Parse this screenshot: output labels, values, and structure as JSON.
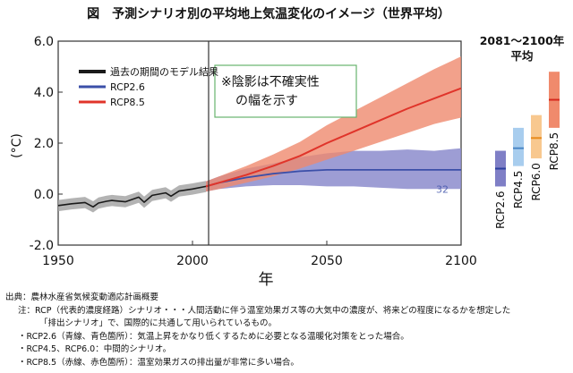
{
  "chart_data": {
    "type": "line",
    "title": "図　予測シナリオ別の平均地上気温変化のイメージ（世界平均）",
    "ylabel": "(°C)",
    "xlabel": "年",
    "xlim": [
      1950,
      2100
    ],
    "ylim": [
      -2.0,
      6.0
    ],
    "xticks": [
      "1950",
      "2000",
      "2050",
      "2100"
    ],
    "yticks": [
      "-2.0",
      "0.0",
      "2.0",
      "4.0",
      "6.0"
    ],
    "annotation": "※陰影は不確実性の幅を示す",
    "watermark_number": "32",
    "colors": {
      "historical_line": "#1a1a1a",
      "historical_band": "#a6a6a6",
      "rcp26_line": "#3b4fa8",
      "rcp26_band": "#8c8ccc",
      "rcp85_line": "#e0342a",
      "rcp85_band": "#ef8a6e"
    },
    "series": [
      {
        "name": "過去の期間のモデル結果",
        "x": [
          1950,
          1955,
          1960,
          1963,
          1965,
          1968,
          1970,
          1975,
          1980,
          1982,
          1985,
          1990,
          1992,
          1995,
          2000,
          2005
        ],
        "values": [
          -0.45,
          -0.38,
          -0.33,
          -0.5,
          -0.35,
          -0.28,
          -0.25,
          -0.3,
          -0.12,
          -0.32,
          -0.05,
          0.05,
          -0.08,
          0.12,
          0.2,
          0.3
        ],
        "band_half_width": 0.22
      },
      {
        "name": "RCP2.6",
        "x": [
          2005,
          2010,
          2020,
          2030,
          2040,
          2050,
          2060,
          2070,
          2080,
          2090,
          2100
        ],
        "values": [
          0.3,
          0.45,
          0.65,
          0.8,
          0.9,
          0.95,
          0.95,
          0.95,
          0.95,
          0.95,
          0.95
        ],
        "lower": [
          0.1,
          0.2,
          0.3,
          0.35,
          0.35,
          0.3,
          0.3,
          0.25,
          0.2,
          0.2,
          0.2
        ],
        "upper": [
          0.5,
          0.7,
          1.0,
          1.2,
          1.45,
          1.6,
          1.7,
          1.7,
          1.75,
          1.7,
          1.8
        ]
      },
      {
        "name": "RCP8.5",
        "x": [
          2005,
          2010,
          2020,
          2030,
          2040,
          2050,
          2060,
          2070,
          2080,
          2090,
          2100
        ],
        "values": [
          0.3,
          0.45,
          0.75,
          1.1,
          1.5,
          2.0,
          2.45,
          2.9,
          3.35,
          3.75,
          4.15
        ],
        "lower": [
          0.1,
          0.2,
          0.45,
          0.7,
          1.0,
          1.35,
          1.7,
          2.05,
          2.4,
          2.75,
          3.0
        ],
        "upper": [
          0.5,
          0.7,
          1.1,
          1.55,
          2.05,
          2.7,
          3.25,
          3.8,
          4.35,
          4.9,
          5.4
        ]
      }
    ],
    "side_panel": {
      "title_line1": "2081～2100年",
      "title_line2": "平均",
      "bars": [
        {
          "label": "RCP2.6",
          "low": 0.3,
          "high": 1.7,
          "mean": 1.0,
          "fill": "#7f7fc6",
          "line": "#2b3f9e"
        },
        {
          "label": "RCP4.5",
          "low": 1.1,
          "high": 2.6,
          "mean": 1.8,
          "fill": "#a8cdee",
          "line": "#4a86c6"
        },
        {
          "label": "RCP6.0",
          "low": 1.4,
          "high": 3.1,
          "mean": 2.2,
          "fill": "#f8c88f",
          "line": "#e88a1c"
        },
        {
          "label": "RCP8.5",
          "low": 2.6,
          "high": 4.8,
          "mean": 3.7,
          "fill": "#f08a6c",
          "line": "#d62a1e"
        }
      ]
    }
  },
  "notes": {
    "source": "出典：農林水産省気候変動適応計画概要",
    "note1": "注：RCP（代表的濃度経路）シナリオ・・・人間活動に伴う温室効果ガス等の大気中の濃度が、将来どの程度になるかを想定した",
    "note2": "「排出シナリオ」で、国際的に共通して用いられているもの。",
    "note3": "・RCP2.6（青線、青色箇所）：気温上昇をかなり低くするために必要となる温暖化対策をとった場合。",
    "note4": "・RCP4.5、RCP6.0：中間的シナリオ。",
    "note5": "・RCP8.5（赤線、赤色箇所）：温室効果ガスの排出量が非常に多い場合。"
  }
}
